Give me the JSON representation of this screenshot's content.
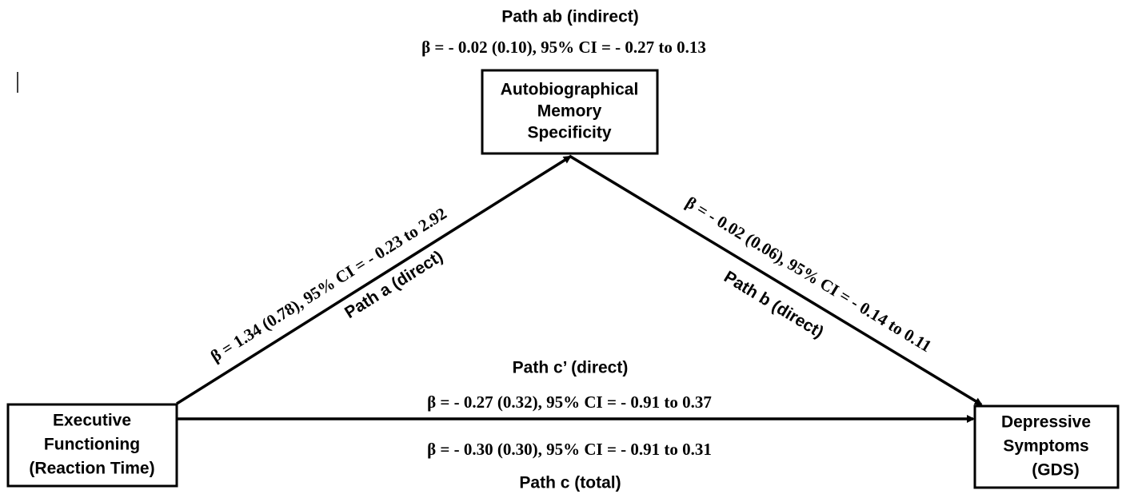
{
  "nodes": [
    {
      "lines": [
        "Autobiographical",
        "Memory",
        "Specificity"
      ]
    },
    {
      "lines": [
        "Executive",
        "Functioning",
        "(Reaction Time)"
      ]
    },
    {
      "lines": [
        "Depressive",
        "Symptoms",
        "(GDS)"
      ]
    }
  ],
  "paths": {
    "ab": {
      "name": "Path ab (indirect)",
      "stat": "β = - 0.02 (0.10), 95% CI = - 0.27 to 0.13"
    },
    "a": {
      "name": "Path a (direct)",
      "stat": "β = 1.34 (0.78), 95% CI = - 0.23 to 2.92"
    },
    "b": {
      "name": "Path b (direct)",
      "stat": "β = - 0.02 (0.06), 95% CI = - 0.14 to 0.11"
    },
    "c_prime": {
      "name": "Path c’ (direct)",
      "stat": "β = - 0.27 (0.32), 95% CI = - 0.91 to 0.37"
    },
    "c": {
      "name": "Path c (total)",
      "stat": "β = - 0.30 (0.30), 95% CI = - 0.91 to 0.31"
    }
  }
}
